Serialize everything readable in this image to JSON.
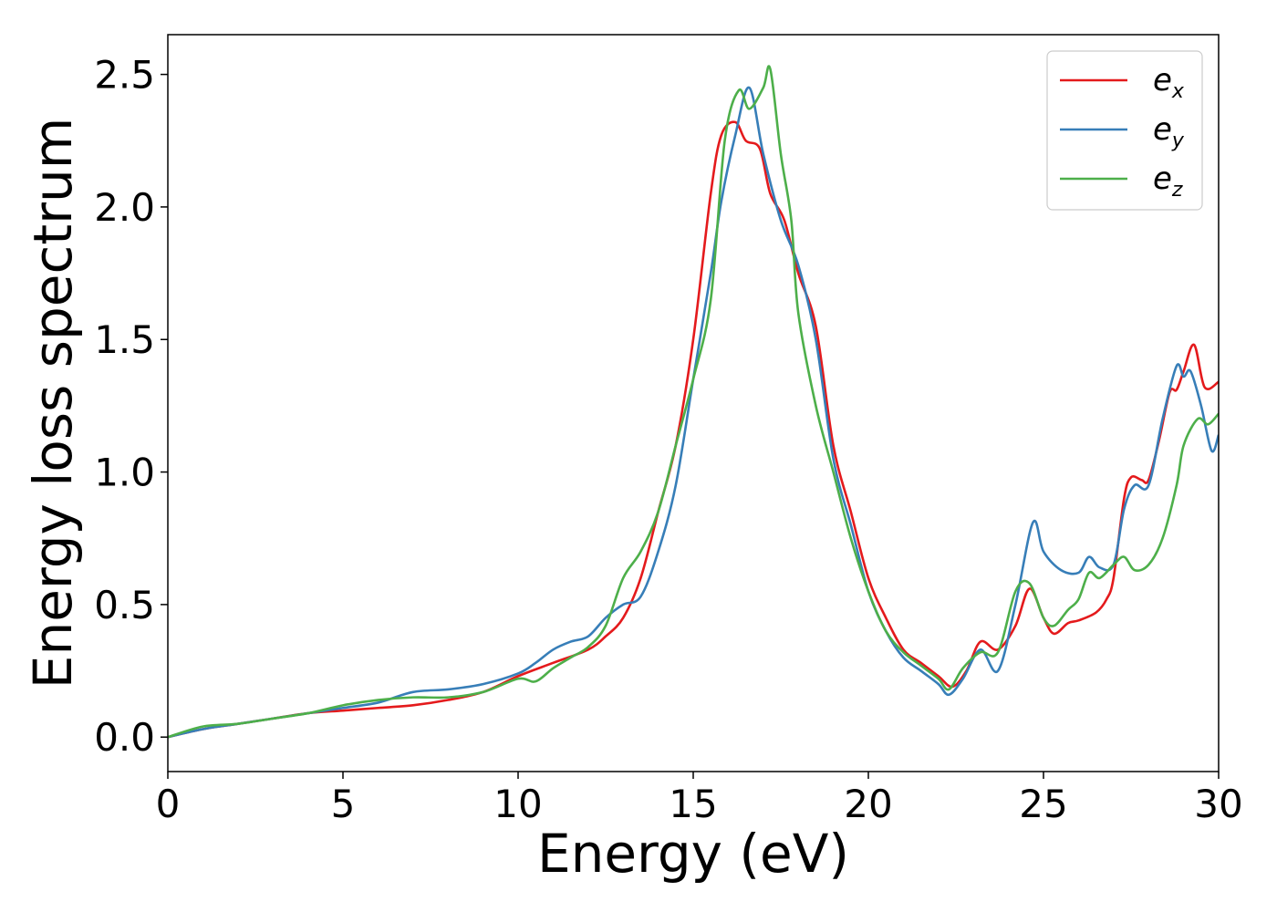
{
  "chart_data": {
    "type": "line",
    "title": "",
    "xlabel": "Energy (eV)",
    "ylabel": "Energy loss spectrum",
    "xlim": [
      0,
      30
    ],
    "ylim": [
      -0.13,
      2.65
    ],
    "xticks": [
      0,
      5,
      10,
      15,
      20,
      25,
      30
    ],
    "xtick_labels": [
      "0",
      "5",
      "10",
      "15",
      "20",
      "25",
      "30"
    ],
    "yticks": [
      0.0,
      0.5,
      1.0,
      1.5,
      2.0,
      2.5
    ],
    "ytick_labels": [
      "0.0",
      "0.5",
      "1.0",
      "1.5",
      "2.0",
      "2.5"
    ],
    "grid": false,
    "legend_position": "top-right",
    "series": [
      {
        "name": "e_x",
        "label_base": "e",
        "label_sub": "x",
        "color": "#e41a1c",
        "x": [
          0,
          1,
          2,
          3,
          4,
          5,
          6,
          7,
          8,
          9,
          10,
          11,
          12,
          12.5,
          13,
          13.5,
          14,
          14.5,
          15,
          15.5,
          15.8,
          16.2,
          16.5,
          16.9,
          17.2,
          17.6,
          18,
          18.5,
          19,
          19.5,
          20,
          20.5,
          21,
          21.5,
          22,
          22.4,
          22.8,
          23.2,
          23.7,
          24.2,
          24.6,
          25,
          25.3,
          25.7,
          26,
          26.5,
          26.8,
          27,
          27.3,
          27.5,
          27.8,
          28,
          28.3,
          28.6,
          28.8,
          29,
          29.3,
          29.6,
          30
        ],
        "y": [
          0.0,
          0.03,
          0.05,
          0.07,
          0.09,
          0.1,
          0.11,
          0.12,
          0.14,
          0.17,
          0.23,
          0.28,
          0.33,
          0.38,
          0.45,
          0.6,
          0.85,
          1.1,
          1.5,
          2.05,
          2.27,
          2.32,
          2.25,
          2.22,
          2.05,
          1.95,
          1.75,
          1.55,
          1.1,
          0.85,
          0.6,
          0.45,
          0.33,
          0.28,
          0.23,
          0.19,
          0.25,
          0.36,
          0.33,
          0.42,
          0.56,
          0.45,
          0.39,
          0.43,
          0.44,
          0.47,
          0.52,
          0.6,
          0.9,
          0.98,
          0.97,
          0.97,
          1.12,
          1.3,
          1.31,
          1.38,
          1.48,
          1.32,
          1.34
        ]
      },
      {
        "name": "e_y",
        "label_base": "e",
        "label_sub": "y",
        "color": "#377eb8",
        "x": [
          0,
          1,
          2,
          3,
          4,
          5,
          6,
          7,
          8,
          9,
          10,
          10.5,
          11,
          11.5,
          12,
          12.5,
          13,
          13.5,
          14,
          14.5,
          15,
          15.5,
          15.8,
          16.2,
          16.6,
          17,
          17.5,
          18,
          18.5,
          19,
          19.5,
          20,
          20.5,
          21,
          21.5,
          22,
          22.3,
          22.7,
          23.2,
          23.7,
          24.2,
          24.7,
          25,
          25.5,
          26,
          26.3,
          26.6,
          27,
          27.3,
          27.6,
          28,
          28.4,
          28.8,
          29,
          29.2,
          29.5,
          29.8,
          30
        ],
        "y": [
          0.0,
          0.03,
          0.05,
          0.07,
          0.09,
          0.11,
          0.13,
          0.17,
          0.18,
          0.2,
          0.24,
          0.28,
          0.33,
          0.36,
          0.38,
          0.45,
          0.5,
          0.53,
          0.7,
          0.95,
          1.35,
          1.75,
          2.02,
          2.27,
          2.45,
          2.2,
          1.95,
          1.78,
          1.5,
          1.05,
          0.8,
          0.55,
          0.4,
          0.3,
          0.25,
          0.2,
          0.16,
          0.22,
          0.33,
          0.25,
          0.5,
          0.81,
          0.7,
          0.63,
          0.62,
          0.68,
          0.64,
          0.65,
          0.86,
          0.95,
          0.95,
          1.2,
          1.4,
          1.36,
          1.38,
          1.25,
          1.08,
          1.14
        ]
      },
      {
        "name": "e_z",
        "label_base": "e",
        "label_sub": "z",
        "color": "#4daf4a",
        "x": [
          0,
          1,
          2,
          3,
          4,
          5,
          6,
          7,
          8,
          9,
          10,
          10.5,
          11,
          11.5,
          12,
          12.5,
          13,
          13.5,
          14,
          14.5,
          15,
          15.5,
          15.9,
          16.3,
          16.6,
          17,
          17.2,
          17.5,
          17.8,
          18,
          18.5,
          19,
          19.5,
          20,
          20.5,
          21,
          21.5,
          22,
          22.3,
          22.7,
          23.2,
          23.7,
          24.2,
          24.6,
          25,
          25.3,
          25.7,
          26,
          26.3,
          26.6,
          27,
          27.3,
          27.6,
          28,
          28.4,
          28.8,
          29,
          29.4,
          29.7,
          30
        ],
        "y": [
          0.0,
          0.04,
          0.05,
          0.07,
          0.09,
          0.12,
          0.14,
          0.15,
          0.15,
          0.17,
          0.22,
          0.21,
          0.26,
          0.3,
          0.34,
          0.42,
          0.6,
          0.7,
          0.85,
          1.1,
          1.35,
          1.65,
          2.25,
          2.44,
          2.37,
          2.45,
          2.52,
          2.2,
          1.95,
          1.6,
          1.25,
          1.0,
          0.75,
          0.55,
          0.4,
          0.32,
          0.27,
          0.22,
          0.18,
          0.26,
          0.32,
          0.32,
          0.55,
          0.58,
          0.45,
          0.42,
          0.48,
          0.52,
          0.62,
          0.6,
          0.65,
          0.68,
          0.63,
          0.65,
          0.75,
          0.95,
          1.1,
          1.2,
          1.18,
          1.22
        ]
      }
    ]
  }
}
